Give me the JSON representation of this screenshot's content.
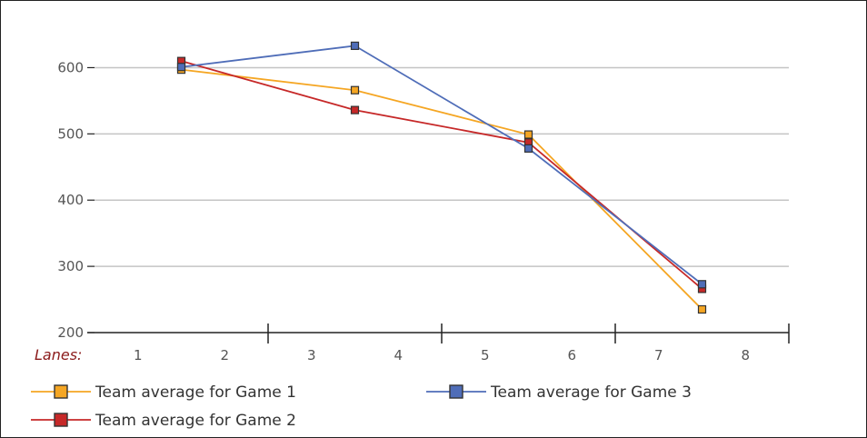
{
  "chart_data": {
    "type": "line",
    "xlabel": "Lanes:",
    "x_ticks": [
      "1",
      "2",
      "3",
      "4",
      "5",
      "6",
      "7",
      "8"
    ],
    "ylim": [
      200,
      650
    ],
    "y_ticks": [
      "200",
      "300",
      "400",
      "500",
      "600"
    ],
    "grid": true,
    "legend_position": "bottom",
    "series": [
      {
        "name": "Team average for Game 1",
        "color": "#f5a623",
        "x": [
          1.5,
          3.5,
          5.5,
          7.5
        ],
        "values": [
          597,
          566,
          499,
          235
        ]
      },
      {
        "name": "Team average for Game 2",
        "color": "#c62828",
        "x": [
          1.5,
          3.5,
          5.5,
          7.5
        ],
        "values": [
          610,
          536,
          487,
          266
        ]
      },
      {
        "name": "Team average for Game 3",
        "color": "#4f6db8",
        "x": [
          1.5,
          3.5,
          5.5,
          7.5
        ],
        "values": [
          601,
          633,
          478,
          273
        ]
      }
    ]
  }
}
